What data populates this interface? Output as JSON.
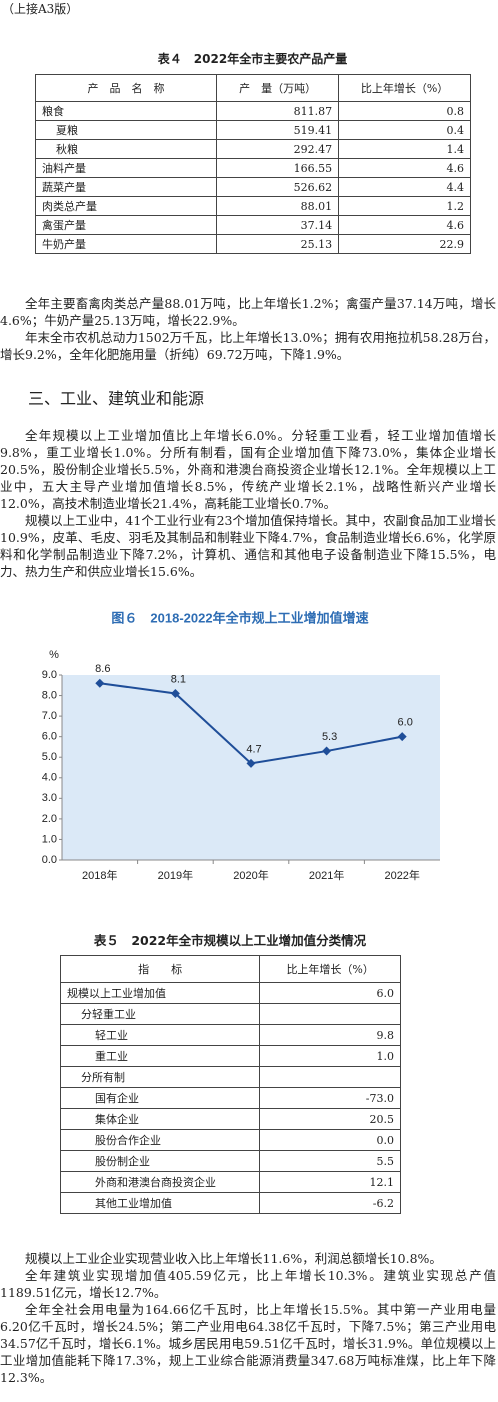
{
  "continuation": "（上接A3版）",
  "table4": {
    "title": "表４　2022年全市主要农产品产量",
    "headers": [
      "产　品　名　称",
      "产　量（万吨）",
      "比上年增长（%）"
    ],
    "rows": [
      {
        "label": "粮食",
        "cells": [
          "811.87",
          "0.8"
        ],
        "children": [
          {
            "label": "夏粮",
            "cells": [
              "519.41",
              "0.4"
            ]
          },
          {
            "label": "秋粮",
            "cells": [
              "292.47",
              "1.4"
            ]
          }
        ]
      },
      {
        "label": "油料产量",
        "cells": [
          "166.55",
          "4.6"
        ]
      },
      {
        "label": "蔬菜产量",
        "cells": [
          "526.62",
          "4.4"
        ]
      },
      {
        "label": "肉类总产量",
        "cells": [
          "88.01",
          "1.2"
        ]
      },
      {
        "label": "禽蛋产量",
        "cells": [
          "37.14",
          "4.6"
        ]
      },
      {
        "label": "牛奶产量",
        "cells": [
          "25.13",
          "22.9"
        ]
      }
    ]
  },
  "paragraphs1": [
    "全年主要畜禽肉类总产量88.01万吨，比上年增长1.2%；禽蛋产量37.14万吨，增长4.6%；牛奶产量25.13万吨，增长22.9%。",
    "年末全市农机总动力1502万千瓦，比上年增长13.0%；拥有农用拖拉机58.28万台，增长9.2%，全年化肥施用量（折纯）69.72万吨，下降1.9%。"
  ],
  "section_heading": "三、工业、建筑业和能源",
  "paragraphs2": [
    "全年规模以上工业增加值比上年增长6.0%。分轻重工业看，轻工业增加值增长9.8%，重工业增长1.0%。分所有制看，国有企业增加值下降73.0%，集体企业增长20.5%，股份制企业增长5.5%，外商和港澳台商投资企业增长12.1%。全年规模以上工业中，五大主导产业增加值增长8.5%，传统产业增长2.1%，战略性新兴产业增长12.0%，高技术制造业增长21.4%，高耗能工业增长0.7%。",
    "规模以上工业中，41个工业行业有23个增加值保持增长。其中，农副食品加工业增长10.9%，皮革、毛皮、羽毛及其制品和制鞋业下降4.7%，食品制造业增长6.6%，化学原料和化学制品制造业下降7.2%，计算机、通信和其他电子设备制造业下降15.5%，电力、热力生产和供应业增长15.6%。"
  ],
  "chart_data": {
    "type": "line",
    "title": "图６　2018-2022年全市规上工业增加值增速",
    "y_label": "%",
    "categories": [
      "2018年",
      "2019年",
      "2020年",
      "2021年",
      "2022年"
    ],
    "values": [
      8.6,
      8.1,
      4.7,
      5.3,
      6.0
    ],
    "value_labels": [
      "8.6",
      "8.1",
      "4.7",
      "5.3",
      "6.0"
    ],
    "color": "#1f4e99",
    "background": "#dbe9f7",
    "ylim": [
      0,
      9
    ],
    "yticks": [
      {
        "value": 0,
        "label": "0.0"
      },
      {
        "value": 1,
        "label": "1.0"
      },
      {
        "value": 2,
        "label": "2.0"
      },
      {
        "value": 3,
        "label": "3.0"
      },
      {
        "value": 4,
        "label": "4.0"
      },
      {
        "value": 5,
        "label": "5.0"
      },
      {
        "value": 6,
        "label": "6.0"
      },
      {
        "value": 7,
        "label": "7.0"
      },
      {
        "value": 8,
        "label": "8.0"
      },
      {
        "value": 9,
        "label": "9.0"
      }
    ],
    "grid": false
  },
  "table5": {
    "title": "表５　2022年全市规模以上工业增加值分类情况",
    "headers": [
      "指　　标",
      "比上年增长（%）"
    ],
    "rows": [
      {
        "label": "规模以上工业增加值",
        "cells": [
          "6.0"
        ],
        "children": [
          {
            "label": "分轻重工业",
            "children": [
              {
                "label": "轻工业",
                "cells": [
                  "9.8"
                ]
              },
              {
                "label": "重工业",
                "cells": [
                  "1.0"
                ]
              }
            ]
          },
          {
            "label": "分所有制",
            "children": [
              {
                "label": "国有企业",
                "cells": [
                  "-73.0"
                ]
              },
              {
                "label": "集体企业",
                "cells": [
                  "20.5"
                ]
              },
              {
                "label": "股份合作企业",
                "cells": [
                  "0.0"
                ]
              },
              {
                "label": "股份制企业",
                "cells": [
                  "5.5"
                ]
              },
              {
                "label": "外商和港澳台商投资企业",
                "cells": [
                  "12.1"
                ]
              },
              {
                "label": "其他工业增加值",
                "cells": [
                  "-6.2"
                ]
              }
            ]
          }
        ]
      }
    ]
  },
  "paragraphs3": [
    "规模以上工业企业实现营业收入比上年增长11.6%，利润总额增长10.8%。",
    "全年建筑业实现增加值405.59亿元，比上年增长10.3%。建筑业实现总产值1189.51亿元，增长12.7%。",
    "全年全社会用电量为164.66亿千瓦时，比上年增长15.5%。其中第一产业用电量6.20亿千瓦时，增长24.5%；第二产业用电64.38亿千瓦时，下降7.5%；第三产业用电34.57亿千瓦时，增长6.1%。城乡居民用电59.51亿千瓦时，增长31.9%。单位规模以上工业增加值能耗下降17.3%，规上工业综合能源消费量347.68万吨标准煤，比上年下降12.3%。"
  ]
}
